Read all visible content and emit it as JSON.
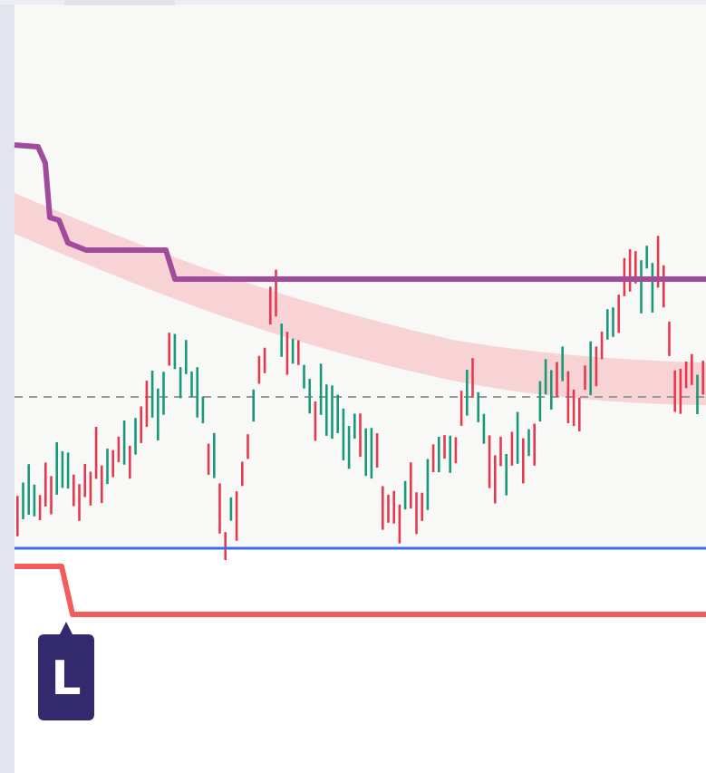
{
  "marker": {
    "label": "L"
  }
}
